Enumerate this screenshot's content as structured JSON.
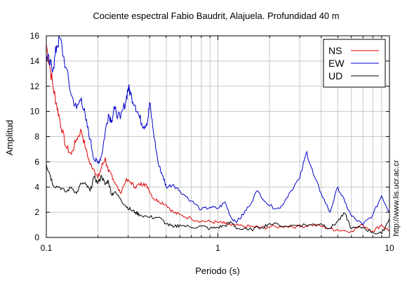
{
  "chart_data": {
    "type": "line",
    "title": "Cociente espectral Fabio Baudrit, Alajuela. Profundidad 40 m",
    "xlabel": "Periodo (s)",
    "ylabel": "Amplitud",
    "xscale": "log",
    "xlim": [
      0.1,
      10
    ],
    "ylim": [
      0,
      16
    ],
    "xticks": [
      0.1,
      1,
      10
    ],
    "xtick_labels": [
      "0.1",
      "1",
      "10"
    ],
    "yticks": [
      0,
      2,
      4,
      6,
      8,
      10,
      12,
      14,
      16
    ],
    "ytick_labels": [
      "0",
      "2",
      "4",
      "6",
      "8",
      "10",
      "12",
      "14",
      "16"
    ],
    "grid": true,
    "legend_position": "top-right",
    "side_text": "http://www.lis.ucr.ac.cr",
    "series": [
      {
        "name": "NS",
        "color": "#e00000",
        "x": [
          0.1,
          0.105,
          0.11,
          0.115,
          0.12,
          0.13,
          0.14,
          0.15,
          0.16,
          0.17,
          0.18,
          0.19,
          0.2,
          0.21,
          0.22,
          0.23,
          0.24,
          0.25,
          0.27,
          0.29,
          0.31,
          0.33,
          0.35,
          0.37,
          0.39,
          0.42,
          0.45,
          0.5,
          0.55,
          0.6,
          0.7,
          0.8,
          0.9,
          1.0,
          1.1,
          1.2,
          1.4,
          1.6,
          1.8,
          2.0,
          2.5,
          3.0,
          3.5,
          4.0,
          4.5,
          5.0,
          6.0,
          7.0,
          8.0,
          9.0,
          10.0
        ],
        "y": [
          15.3,
          13.5,
          11.8,
          10.5,
          9.3,
          7.2,
          6.6,
          7.8,
          8.5,
          7.0,
          5.8,
          5.4,
          4.7,
          5.6,
          6.3,
          5.2,
          5.0,
          4.4,
          3.5,
          4.5,
          4.4,
          4.0,
          4.2,
          4.3,
          4.0,
          3.1,
          2.9,
          2.6,
          2.0,
          1.8,
          1.5,
          1.3,
          1.25,
          1.2,
          1.1,
          0.95,
          0.9,
          0.85,
          0.8,
          0.8,
          0.9,
          0.85,
          1.0,
          0.9,
          0.7,
          0.6,
          0.5,
          1.0,
          0.5,
          1.0,
          0.5
        ]
      },
      {
        "name": "EW",
        "color": "#0000cc",
        "x": [
          0.1,
          0.105,
          0.11,
          0.115,
          0.12,
          0.13,
          0.14,
          0.15,
          0.16,
          0.17,
          0.18,
          0.19,
          0.2,
          0.21,
          0.22,
          0.23,
          0.24,
          0.25,
          0.27,
          0.29,
          0.3,
          0.31,
          0.33,
          0.35,
          0.37,
          0.39,
          0.4,
          0.42,
          0.45,
          0.48,
          0.5,
          0.55,
          0.6,
          0.7,
          0.8,
          0.9,
          1.0,
          1.1,
          1.2,
          1.3,
          1.4,
          1.5,
          1.7,
          2.0,
          2.3,
          2.6,
          3.0,
          3.3,
          3.6,
          4.0,
          4.5,
          5.0,
          5.5,
          6.0,
          7.0,
          8.0,
          9.0,
          10.0
        ],
        "y": [
          14.5,
          13.7,
          13.5,
          15.2,
          15.8,
          13.5,
          11.3,
          10.2,
          11.1,
          9.3,
          7.8,
          6.2,
          5.9,
          6.5,
          8.3,
          9.8,
          9.3,
          10.2,
          9.4,
          10.8,
          11.9,
          11.4,
          10.5,
          9.5,
          8.8,
          9.3,
          10.7,
          8.5,
          5.8,
          4.8,
          4.0,
          4.2,
          3.7,
          2.9,
          2.2,
          2.4,
          2.3,
          2.8,
          1.5,
          1.3,
          1.8,
          2.4,
          3.7,
          2.5,
          2.3,
          3.5,
          4.7,
          6.8,
          5.0,
          3.5,
          2.0,
          4.0,
          2.8,
          1.7,
          1.0,
          1.8,
          3.3,
          2.0
        ]
      },
      {
        "name": "UD",
        "color": "#000000",
        "x": [
          0.1,
          0.105,
          0.11,
          0.12,
          0.13,
          0.14,
          0.15,
          0.16,
          0.17,
          0.18,
          0.19,
          0.2,
          0.21,
          0.22,
          0.23,
          0.24,
          0.25,
          0.27,
          0.29,
          0.31,
          0.33,
          0.35,
          0.4,
          0.45,
          0.5,
          0.55,
          0.6,
          0.7,
          0.8,
          0.9,
          1.0,
          1.1,
          1.2,
          1.3,
          1.5,
          1.8,
          2.0,
          2.5,
          3.0,
          3.5,
          4.0,
          4.5,
          5.0,
          5.5,
          6.0,
          7.0,
          8.0,
          9.0,
          10.0
        ],
        "y": [
          5.8,
          5.0,
          4.1,
          4.0,
          3.6,
          4.0,
          3.5,
          4.3,
          4.2,
          3.7,
          4.8,
          4.3,
          4.9,
          4.2,
          4.5,
          3.4,
          3.6,
          3.1,
          2.5,
          2.2,
          2.0,
          1.8,
          1.6,
          1.6,
          1.1,
          0.8,
          1.0,
          0.8,
          0.9,
          0.7,
          0.8,
          0.95,
          1.2,
          0.7,
          0.6,
          0.8,
          1.1,
          0.9,
          1.0,
          1.0,
          1.1,
          0.7,
          1.3,
          1.9,
          0.7,
          0.8,
          0.4,
          0.3,
          1.5
        ]
      }
    ]
  }
}
